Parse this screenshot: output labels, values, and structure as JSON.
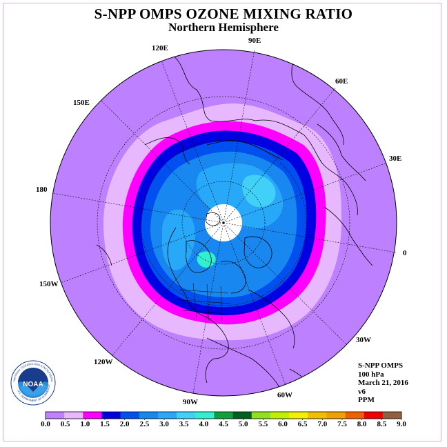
{
  "header": {
    "title": "S-NPP OMPS OZONE MIXING RATIO",
    "subtitle": "Northern Hemisphere"
  },
  "map": {
    "projection": "north polar stereographic",
    "longitude_labels": [
      {
        "lon": "90E"
      },
      {
        "lon": "60E"
      },
      {
        "lon": "30E"
      },
      {
        "lon": "0"
      },
      {
        "lon": "30W"
      },
      {
        "lon": "60W"
      },
      {
        "lon": "90W"
      },
      {
        "lon": "120W"
      },
      {
        "lon": "150W"
      },
      {
        "lon": "180"
      },
      {
        "lon": "150E"
      },
      {
        "lon": "120E"
      }
    ]
  },
  "info": {
    "instrument": "S-NPP OMPS",
    "level": "100 hPa",
    "date": "March 21, 2016",
    "version": "v6",
    "units": "PPM"
  },
  "logo": {
    "text": "NOAA",
    "ring_text_top": "NATIONAL OCEANIC AND ATMOSPHERIC ADMINISTRATION",
    "ring_text_bottom": "U.S. DEPARTMENT OF COMMERCE"
  },
  "colorbar": {
    "ticks": [
      "0.0",
      "0.5",
      "1.0",
      "1.5",
      "2.0",
      "2.5",
      "3.0",
      "3.5",
      "4.0",
      "4.5",
      "5.0",
      "5.5",
      "6.0",
      "6.5",
      "7.0",
      "7.5",
      "8.0",
      "8.5",
      "9.0"
    ],
    "colors": [
      "#c080ff",
      "#e8b8ff",
      "#ff00ff",
      "#0000e0",
      "#0050f0",
      "#1888f0",
      "#28a8f8",
      "#40d0f8",
      "#30f0d0",
      "#10a040",
      "#006020",
      "#90e020",
      "#c0f000",
      "#f0f000",
      "#f0c000",
      "#f0a000",
      "#f06000",
      "#f00000",
      "#906040"
    ]
  }
}
